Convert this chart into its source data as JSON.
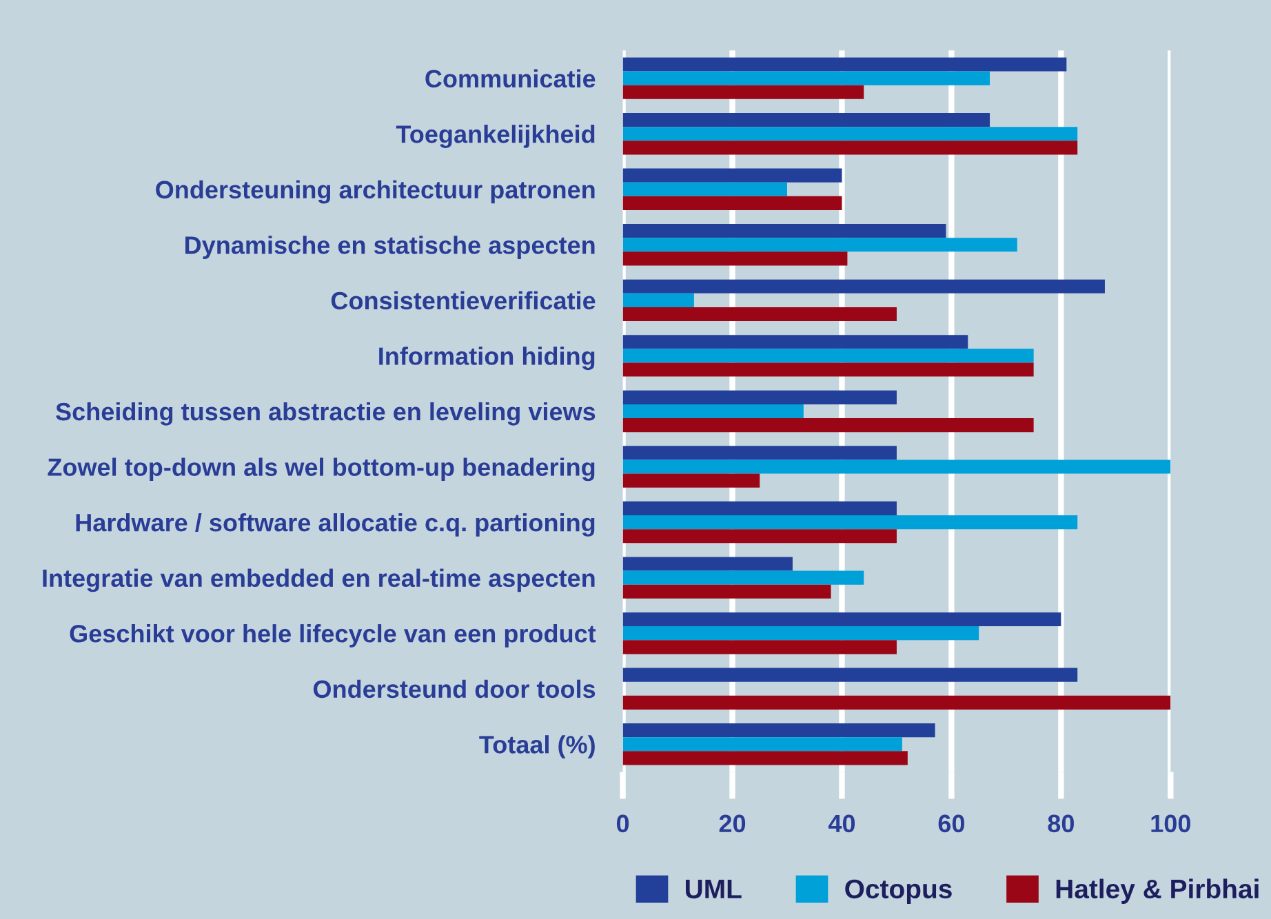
{
  "chart_data": {
    "type": "bar",
    "orientation": "horizontal",
    "categories": [
      "Communicatie",
      "Toegankelijkheid",
      "Ondersteuning architectuur patronen",
      "Dynamische en statische aspecten",
      "Consistentieverificatie",
      "Information hiding",
      "Scheiding tussen abstractie en leveling views",
      "Zowel top-down als wel bottom-up benadering",
      "Hardware / software allocatie c.q. partioning",
      "Integratie van embedded en real-time aspecten",
      "Geschikt voor hele lifecycle van een product",
      "Ondersteund door tools",
      "Totaal (%)"
    ],
    "series": [
      {
        "name": "UML",
        "color": "#22409a",
        "values": [
          81,
          67,
          40,
          59,
          88,
          63,
          50,
          50,
          50,
          31,
          80,
          83,
          57
        ]
      },
      {
        "name": "Octopus",
        "color": "#00a0d8",
        "values": [
          67,
          83,
          30,
          72,
          13,
          75,
          33,
          100,
          83,
          44,
          65,
          0,
          51
        ]
      },
      {
        "name": "Hatley & Pirbhai",
        "color": "#9b0616",
        "values": [
          44,
          83,
          40,
          41,
          50,
          75,
          75,
          25,
          50,
          38,
          50,
          100,
          52
        ]
      }
    ],
    "xlim": [
      0,
      100
    ],
    "xticks": [
      0,
      20,
      40,
      60,
      80,
      100
    ],
    "grid": "x",
    "legend": "bottom"
  }
}
